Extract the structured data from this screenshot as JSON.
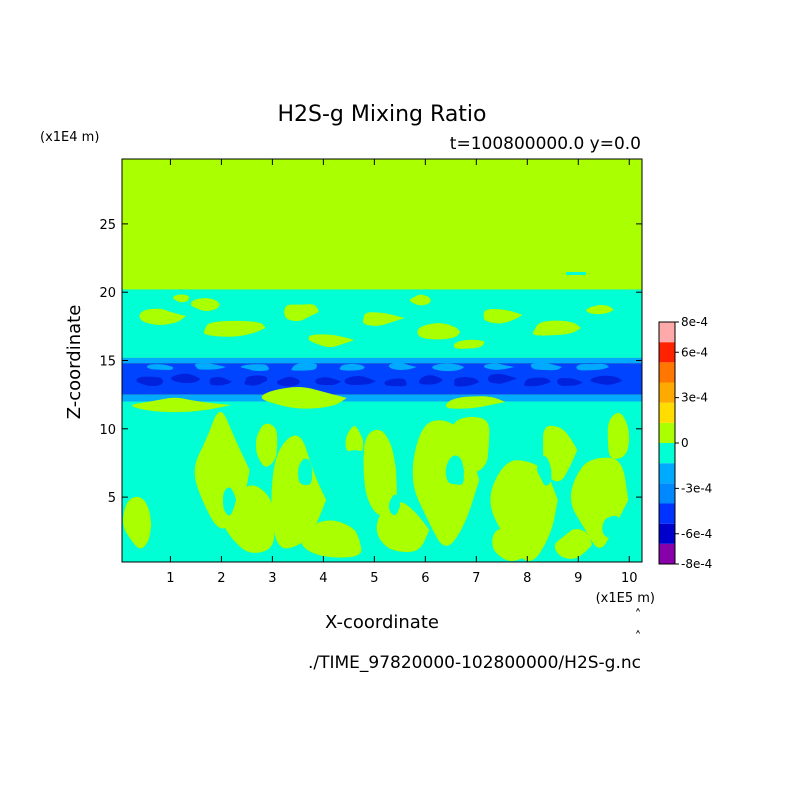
{
  "chart_data": {
    "type": "heatmap",
    "title": "H2S-g Mixing Ratio",
    "subtitle": "t=100800000.0 y=0.0",
    "xlabel": "X-coordinate",
    "ylabel": "Z-coordinate",
    "x_unit": "(x1E5 m)",
    "y_unit": "(x1E4 m)",
    "source_file": "./TIME_97820000-102800000/H2S-g.nc",
    "xlim": [
      0.05,
      10.25
    ],
    "ylim": [
      0.25,
      29.75
    ],
    "x_ticks": [
      {
        "value": 1,
        "label": "1"
      },
      {
        "value": 2,
        "label": "2"
      },
      {
        "value": 3,
        "label": "3"
      },
      {
        "value": 4,
        "label": "4"
      },
      {
        "value": 5,
        "label": "5"
      },
      {
        "value": 6,
        "label": "6"
      },
      {
        "value": 7,
        "label": "7"
      },
      {
        "value": 8,
        "label": "8"
      },
      {
        "value": 9,
        "label": "9"
      },
      {
        "value": 10,
        "label": "10"
      }
    ],
    "y_ticks": [
      {
        "value": 5,
        "label": "5"
      },
      {
        "value": 10,
        "label": "10"
      },
      {
        "value": 15,
        "label": "15"
      },
      {
        "value": 20,
        "label": "20"
      },
      {
        "value": 25,
        "label": "25"
      }
    ],
    "colorbar": {
      "levels": [
        -0.0008,
        -0.0006,
        -0.0004,
        -0.0003,
        -0.0001,
        0,
        0.0001,
        0.0003,
        0.0004,
        0.0006,
        0.0007,
        0.0008
      ],
      "colors": [
        "#8800aa",
        "#0000cc",
        "#0033ff",
        "#0088ff",
        "#00aaff",
        "#00ffd4",
        "#aaff00",
        "#ffdd00",
        "#ffaa00",
        "#ff7700",
        "#ff2200",
        "#ffaaaa"
      ],
      "labels": [
        {
          "value": 0.0008,
          "label": "8e-4"
        },
        {
          "value": 0.0006,
          "label": "6e-4"
        },
        {
          "value": 0.0003,
          "label": "3e-4"
        },
        {
          "value": 0,
          "label": "0"
        },
        {
          "value": -0.0003,
          "label": "-3e-4"
        },
        {
          "value": -0.0006,
          "label": "-6e-4"
        },
        {
          "value": -0.0008,
          "label": "-8e-4"
        }
      ]
    },
    "regions": [
      {
        "z_range": [
          20.2,
          29.75
        ],
        "value": 5e-05,
        "color": "#aaff00"
      },
      {
        "z_range": [
          15.2,
          20.2
        ],
        "value": -5e-05,
        "color": "#00ffd4",
        "patches": "#aaff00"
      },
      {
        "z_range": [
          14.8,
          15.2
        ],
        "value": -0.00015,
        "color": "#00aaff"
      },
      {
        "z_range": [
          12.5,
          14.8
        ],
        "value": -0.00045,
        "color": "#0044ff"
      },
      {
        "z_range": [
          12.0,
          12.5
        ],
        "value": -0.00015,
        "color": "#00aaff"
      },
      {
        "z_range": [
          0.25,
          12.0
        ],
        "value": -5e-05,
        "color": "#00ffd4",
        "patches": "#aaff00"
      }
    ]
  }
}
